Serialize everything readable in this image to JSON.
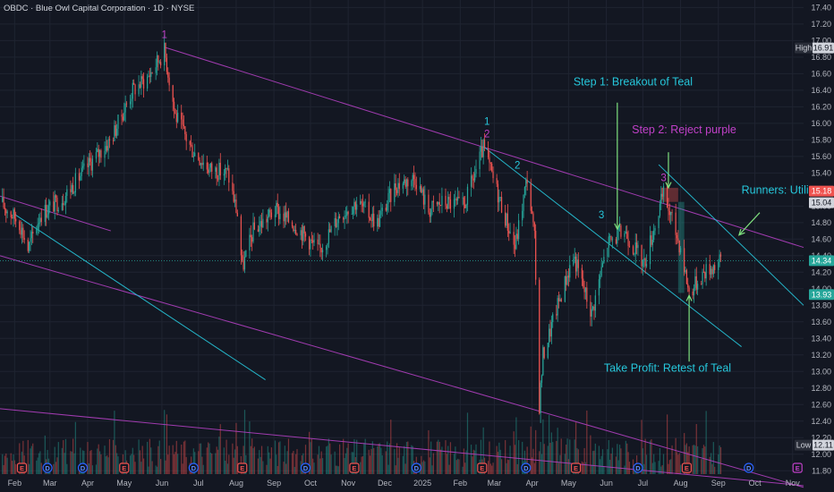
{
  "header": {
    "title": "OBDC · Blue Owl Capital Corporation · 1D · NYSE"
  },
  "colors": {
    "background": "#131722",
    "grid": "#1f2431",
    "up": "#26a69a",
    "down": "#ef5350",
    "purple": "#b03fbf",
    "teal": "#26c6da",
    "arrow_green": "#7ee07e",
    "axis_text": "#b2b5be"
  },
  "chart_data": {
    "type": "candlestick",
    "symbol": "OBDC",
    "yaxis": {
      "ylim": [
        11.76,
        17.49
      ],
      "ticks": [
        "17.40",
        "17.20",
        "17.00",
        "16.80",
        "16.60",
        "16.40",
        "16.20",
        "16.00",
        "15.80",
        "15.60",
        "15.40",
        "15.20",
        "15.00",
        "14.80",
        "14.60",
        "14.40",
        "14.20",
        "14.00",
        "13.80",
        "13.60",
        "13.40",
        "13.20",
        "13.00",
        "12.80",
        "12.60",
        "12.40",
        "12.20",
        "12.00",
        "11.80"
      ]
    },
    "xaxis": {
      "range": [
        "2024-01-20",
        "2025-11-10"
      ],
      "ticks": [
        {
          "label": "Feb",
          "date": "2024-02-01"
        },
        {
          "label": "Mar",
          "date": "2024-03-01"
        },
        {
          "label": "Apr",
          "date": "2024-04-01"
        },
        {
          "label": "May",
          "date": "2024-05-01"
        },
        {
          "label": "Jun",
          "date": "2024-06-01"
        },
        {
          "label": "Jul",
          "date": "2024-07-01"
        },
        {
          "label": "Aug",
          "date": "2024-08-01"
        },
        {
          "label": "Sep",
          "date": "2024-09-01"
        },
        {
          "label": "Oct",
          "date": "2024-10-01"
        },
        {
          "label": "Nov",
          "date": "2024-11-01"
        },
        {
          "label": "Dec",
          "date": "2024-12-01"
        },
        {
          "label": "2025",
          "date": "2025-01-01"
        },
        {
          "label": "Feb",
          "date": "2025-02-01"
        },
        {
          "label": "Mar",
          "date": "2025-03-01"
        },
        {
          "label": "Apr",
          "date": "2025-04-01"
        },
        {
          "label": "May",
          "date": "2025-05-01"
        },
        {
          "label": "Jun",
          "date": "2025-06-01"
        },
        {
          "label": "Jul",
          "date": "2025-07-01"
        },
        {
          "label": "Aug",
          "date": "2025-08-01"
        },
        {
          "label": "Sep",
          "date": "2025-09-01"
        },
        {
          "label": "Oct",
          "date": "2025-10-01"
        },
        {
          "label": "Nov",
          "date": "2025-11-01"
        }
      ]
    },
    "price_path": [
      {
        "x": "2024-01-20",
        "y": 15.05
      },
      {
        "x": "2024-02-05",
        "y": 14.8
      },
      {
        "x": "2024-02-12",
        "y": 14.48
      },
      {
        "x": "2024-02-22",
        "y": 14.9
      },
      {
        "x": "2024-03-12",
        "y": 15.1
      },
      {
        "x": "2024-04-02",
        "y": 15.5
      },
      {
        "x": "2024-04-20",
        "y": 15.8
      },
      {
        "x": "2024-05-08",
        "y": 16.4
      },
      {
        "x": "2024-05-20",
        "y": 16.55
      },
      {
        "x": "2024-06-03",
        "y": 16.88
      },
      {
        "x": "2024-06-12",
        "y": 16.1
      },
      {
        "x": "2024-06-25",
        "y": 15.7
      },
      {
        "x": "2024-07-10",
        "y": 15.45
      },
      {
        "x": "2024-07-25",
        "y": 15.4
      },
      {
        "x": "2024-08-02",
        "y": 14.9
      },
      {
        "x": "2024-08-06",
        "y": 14.25
      },
      {
        "x": "2024-08-15",
        "y": 14.7
      },
      {
        "x": "2024-09-02",
        "y": 14.95
      },
      {
        "x": "2024-09-20",
        "y": 14.75
      },
      {
        "x": "2024-10-08",
        "y": 14.45
      },
      {
        "x": "2024-10-25",
        "y": 14.9
      },
      {
        "x": "2024-11-08",
        "y": 15.05
      },
      {
        "x": "2024-11-25",
        "y": 14.8
      },
      {
        "x": "2024-12-10",
        "y": 15.25
      },
      {
        "x": "2024-12-26",
        "y": 15.35
      },
      {
        "x": "2025-01-06",
        "y": 14.95
      },
      {
        "x": "2025-01-18",
        "y": 15.05
      },
      {
        "x": "2025-02-04",
        "y": 15.0
      },
      {
        "x": "2025-02-20",
        "y": 15.7
      },
      {
        "x": "2025-03-05",
        "y": 15.1
      },
      {
        "x": "2025-03-18",
        "y": 14.5
      },
      {
        "x": "2025-03-28",
        "y": 15.35
      },
      {
        "x": "2025-04-03",
        "y": 14.6
      },
      {
        "x": "2025-04-07",
        "y": 12.6
      },
      {
        "x": "2025-04-10",
        "y": 13.2
      },
      {
        "x": "2025-04-22",
        "y": 13.8
      },
      {
        "x": "2025-05-05",
        "y": 14.4
      },
      {
        "x": "2025-05-20",
        "y": 13.7
      },
      {
        "x": "2025-06-02",
        "y": 14.55
      },
      {
        "x": "2025-06-16",
        "y": 14.7
      },
      {
        "x": "2025-07-02",
        "y": 14.3
      },
      {
        "x": "2025-07-18",
        "y": 15.15
      },
      {
        "x": "2025-08-01",
        "y": 14.5
      },
      {
        "x": "2025-08-08",
        "y": 13.95
      },
      {
        "x": "2025-08-20",
        "y": 14.2
      },
      {
        "x": "2025-09-03",
        "y": 14.34
      }
    ],
    "last_price": "14.34",
    "price_tags": [
      {
        "label": "High",
        "value": "16.91",
        "y": 16.91,
        "color": "#131722",
        "bg": "#d1d4dc",
        "prefix_bg": "#2a2e39"
      },
      {
        "label": "",
        "value": "15.18",
        "y": 15.18,
        "color": "#ffffff",
        "bg": "#ef5350"
      },
      {
        "label": "",
        "value": "15.04",
        "y": 15.04,
        "color": "#131722",
        "bg": "#d1d4dc"
      },
      {
        "label": "",
        "value": "14.34",
        "y": 14.34,
        "color": "#ffffff",
        "bg": "#26a69a"
      },
      {
        "label": "",
        "value": "13.93",
        "y": 13.93,
        "color": "#ffffff",
        "bg": "#26a69a"
      },
      {
        "label": "Low",
        "value": "12.11",
        "y": 12.11,
        "color": "#131722",
        "bg": "#d1d4dc",
        "prefix_bg": "#2a2e39"
      }
    ],
    "trendlines": [
      {
        "name": "purple-upper",
        "color": "#b03fbf",
        "points": [
          {
            "x": "2024-06-03",
            "y": 16.92
          },
          {
            "x": "2025-11-10",
            "y": 14.5
          }
        ]
      },
      {
        "name": "purple-lower",
        "color": "#b03fbf",
        "points": [
          {
            "x": "2024-01-20",
            "y": 14.4
          },
          {
            "x": "2025-11-10",
            "y": 11.6
          }
        ]
      },
      {
        "name": "purple-bottom",
        "color": "#b03fbf",
        "points": [
          {
            "x": "2024-01-20",
            "y": 12.55
          },
          {
            "x": "2025-11-10",
            "y": 11.62
          }
        ]
      },
      {
        "name": "purple-small",
        "color": "#b03fbf",
        "points": [
          {
            "x": "2024-01-20",
            "y": 15.12
          },
          {
            "x": "2024-04-20",
            "y": 14.7
          }
        ]
      },
      {
        "name": "teal-long",
        "color": "#26c6da",
        "points": [
          {
            "x": "2024-02-01",
            "y": 14.9
          },
          {
            "x": "2024-08-25",
            "y": 12.9
          }
        ]
      },
      {
        "name": "teal-channel-upper",
        "color": "#26c6da",
        "points": [
          {
            "x": "2025-02-20",
            "y": 15.72
          },
          {
            "x": "2025-09-20",
            "y": 13.3
          }
        ]
      },
      {
        "name": "teal-runner",
        "color": "#26c6da",
        "points": [
          {
            "x": "2025-07-14",
            "y": 15.5
          },
          {
            "x": "2025-11-10",
            "y": 13.8
          }
        ]
      }
    ],
    "annotations": [
      {
        "text": "1",
        "x": "2024-06-03",
        "y": 17.03,
        "color": "#c040c8"
      },
      {
        "text": "1",
        "x": "2025-02-23",
        "y": 15.98,
        "color": "#26c6da"
      },
      {
        "text": "2",
        "x": "2025-02-23",
        "y": 15.83,
        "color": "#c040c8"
      },
      {
        "text": "2",
        "x": "2025-03-20",
        "y": 15.45,
        "color": "#26c6da"
      },
      {
        "text": "3",
        "x": "2025-05-28",
        "y": 14.85,
        "color": "#26c6da"
      },
      {
        "text": "3",
        "x": "2025-07-18",
        "y": 15.3,
        "color": "#c040c8"
      },
      {
        "text": "Step 1: Breakout of Teal",
        "x": "2025-05-05",
        "y": 16.46,
        "color": "#26c6da"
      },
      {
        "text": "Step 2: Reject purple",
        "x": "2025-06-22",
        "y": 15.88,
        "color": "#c040c8"
      },
      {
        "text": "Take Profit: Retest of Teal",
        "x": "2025-05-30",
        "y": 13.0,
        "color": "#26c6da"
      },
      {
        "text": "Runners: Utilize te",
        "x": "2025-09-20",
        "y": 15.15,
        "color": "#26c6da"
      }
    ],
    "arrows": [
      {
        "name": "step1-arrow",
        "from": {
          "x": "2025-06-10",
          "y": 16.25
        },
        "to": {
          "x": "2025-06-10",
          "y": 14.72
        }
      },
      {
        "name": "step2-arrow",
        "from": {
          "x": "2025-07-22",
          "y": 15.65
        },
        "to": {
          "x": "2025-07-22",
          "y": 15.22
        }
      },
      {
        "name": "takeprofit-arrow",
        "from": {
          "x": "2025-08-08",
          "y": 13.12
        },
        "to": {
          "x": "2025-08-08",
          "y": 13.92
        }
      },
      {
        "name": "runners-arrow",
        "from": {
          "x": "2025-10-05",
          "y": 14.92
        },
        "to": {
          "x": "2025-09-18",
          "y": 14.65
        }
      }
    ],
    "boxes": [
      {
        "name": "reject-box",
        "color": "#ef5350",
        "x0": "2025-07-16",
        "x1": "2025-07-30",
        "y0": 15.05,
        "y1": 15.22
      },
      {
        "name": "retest-box",
        "color": "#26a69a",
        "x0": "2025-07-30",
        "x1": "2025-08-04",
        "y0": 13.95,
        "y1": 15.05
      }
    ],
    "events": [
      {
        "x": "2024-02-07",
        "type": "E"
      },
      {
        "x": "2024-02-28",
        "type": "D"
      },
      {
        "x": "2024-03-28",
        "type": "D"
      },
      {
        "x": "2024-05-01",
        "type": "E"
      },
      {
        "x": "2024-06-27",
        "type": "D"
      },
      {
        "x": "2024-08-06",
        "type": "E"
      },
      {
        "x": "2024-09-27",
        "type": "D"
      },
      {
        "x": "2024-11-06",
        "type": "E"
      },
      {
        "x": "2024-12-27",
        "type": "D"
      },
      {
        "x": "2025-02-19",
        "type": "E"
      },
      {
        "x": "2025-03-27",
        "type": "D"
      },
      {
        "x": "2025-05-07",
        "type": "E"
      },
      {
        "x": "2025-06-27",
        "type": "D"
      },
      {
        "x": "2025-08-06",
        "type": "E"
      },
      {
        "x": "2025-09-26",
        "type": "D"
      },
      {
        "x": "2025-11-05",
        "type": "E"
      }
    ]
  }
}
